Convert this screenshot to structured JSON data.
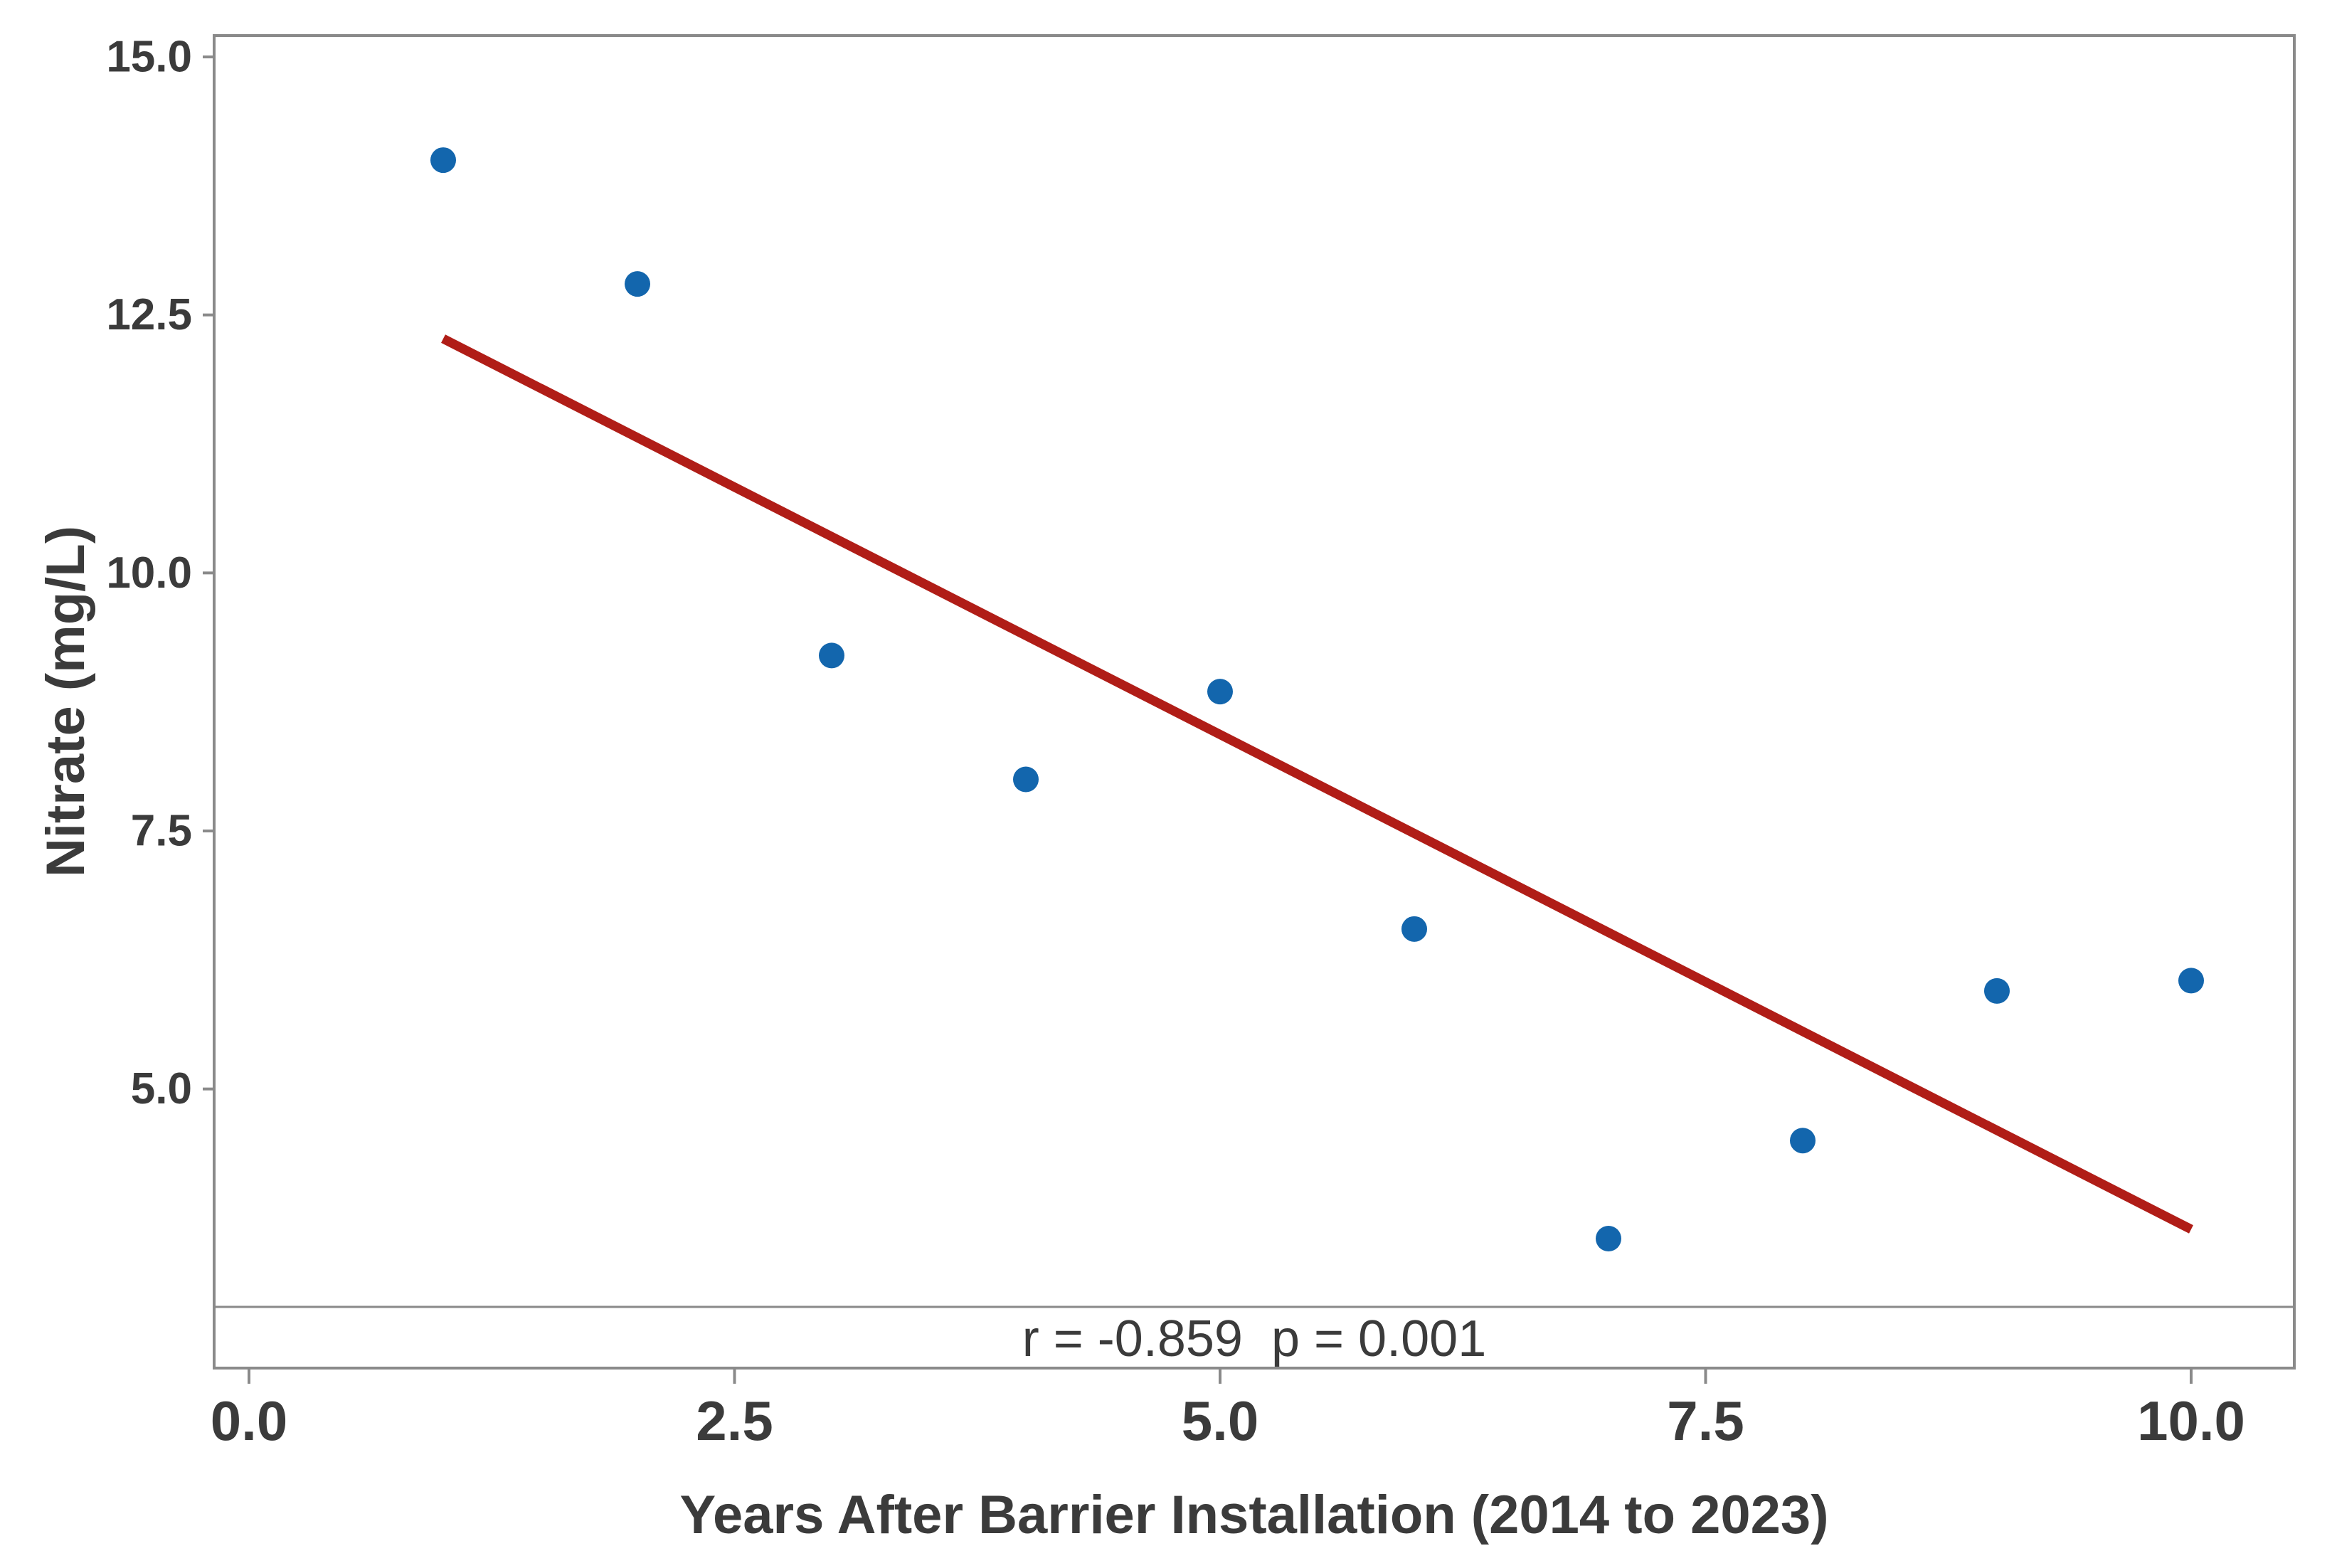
{
  "chart_data": {
    "type": "scatter",
    "title": "",
    "xlabel": "Years After Barrier Installation (2014 to 2023)",
    "ylabel": "Nitrate (mg/L)",
    "points": [
      {
        "x": 1,
        "y": 14.0
      },
      {
        "x": 2,
        "y": 12.8
      },
      {
        "x": 3,
        "y": 9.2
      },
      {
        "x": 4,
        "y": 8.0
      },
      {
        "x": 5,
        "y": 8.85
      },
      {
        "x": 6,
        "y": 6.55
      },
      {
        "x": 7,
        "y": 3.55
      },
      {
        "x": 8,
        "y": 4.5
      },
      {
        "x": 9,
        "y": 5.95
      },
      {
        "x": 10,
        "y": 6.05
      }
    ],
    "trendline": {
      "start": {
        "x": 1,
        "y": 12.27
      },
      "end": {
        "x": 10,
        "y": 3.64
      }
    },
    "annotation": {
      "text": "r = -0.859  p = 0.001"
    },
    "x_axis": {
      "title": "Years After Barrier Installation (2014 to 2023)",
      "ticks": [
        {
          "value": 0,
          "label": "0.0"
        },
        {
          "value": 2.5,
          "label": "2.5"
        },
        {
          "value": 5,
          "label": "5.0"
        },
        {
          "value": 7.5,
          "label": "7.5"
        },
        {
          "value": 10,
          "label": "10.0"
        }
      ]
    },
    "y_axis": {
      "title": "Nitrate (mg/L)",
      "ticks": [
        {
          "value": 15,
          "label": "15.0"
        },
        {
          "value": 12.5,
          "label": "12.5"
        },
        {
          "value": 10,
          "label": "10.0"
        },
        {
          "value": 7.5,
          "label": "7.5"
        },
        {
          "value": 5,
          "label": "5.0"
        }
      ]
    },
    "xlim": [
      -0.18,
      10.53
    ],
    "ylim": [
      2.29,
      15.21
    ],
    "grid": false,
    "legend": false,
    "colors": {
      "point": "#1366ad",
      "trend": "#b01d17",
      "frame": "#8a8a8a",
      "text": "#3b3b3b"
    }
  }
}
